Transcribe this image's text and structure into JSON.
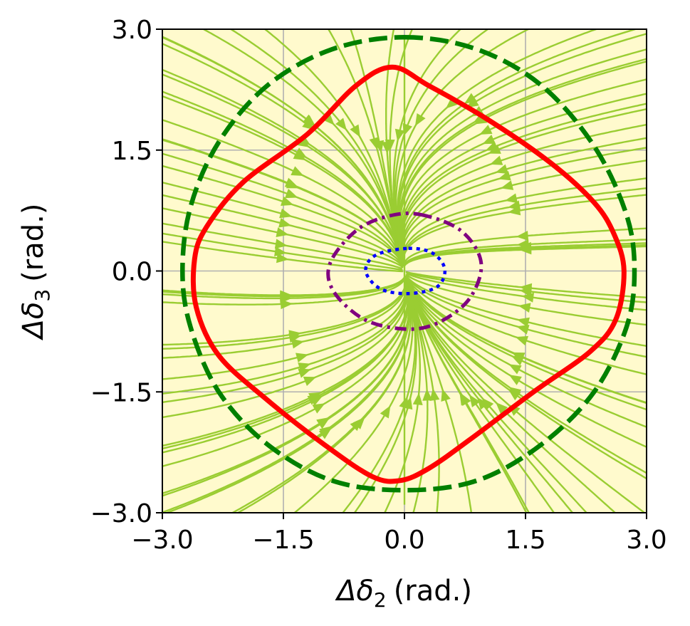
{
  "chart_data": {
    "type": "streamplot",
    "title": "",
    "xlabel": {
      "symbol": "Δδ",
      "sub": "2",
      "unit": "(rad.)"
    },
    "ylabel": {
      "symbol": "Δδ",
      "sub": "3",
      "unit": "(rad.)"
    },
    "xlim": [
      -3.0,
      3.0
    ],
    "ylim": [
      -3.0,
      3.0
    ],
    "xticks": [
      -3.0,
      -1.5,
      0.0,
      1.5,
      3.0
    ],
    "yticks": [
      -3.0,
      -1.5,
      0.0,
      1.5,
      3.0
    ],
    "xtick_labels": [
      "−3.0",
      "−1.5",
      "0.0",
      "1.5",
      "3.0"
    ],
    "ytick_labels": [
      "−3.0",
      "−1.5",
      "0.0",
      "1.5",
      "3.0"
    ],
    "grid": true,
    "background_color": "#fffacd",
    "streamline_color": "#9acd32",
    "equilibrium": [
      0.0,
      0.0
    ],
    "series": [
      {
        "style": "solid",
        "color": "#ff0000",
        "points": [
          [
            -0.15,
            2.53
          ],
          [
            0.3,
            2.3
          ],
          [
            1.0,
            1.9
          ],
          [
            1.8,
            1.35
          ],
          [
            2.35,
            0.85
          ],
          [
            2.6,
            0.45
          ],
          [
            2.72,
            0.0
          ],
          [
            2.62,
            -0.6
          ],
          [
            2.3,
            -1.0
          ],
          [
            1.6,
            -1.5
          ],
          [
            0.8,
            -2.1
          ],
          [
            0.3,
            -2.45
          ],
          [
            -0.05,
            -2.6
          ],
          [
            -0.4,
            -2.55
          ],
          [
            -1.0,
            -2.15
          ],
          [
            -1.7,
            -1.6
          ],
          [
            -2.3,
            -1.05
          ],
          [
            -2.58,
            -0.45
          ],
          [
            -2.6,
            0.15
          ],
          [
            -2.45,
            0.55
          ],
          [
            -2.0,
            1.1
          ],
          [
            -1.2,
            1.7
          ],
          [
            -0.6,
            2.3
          ]
        ]
      },
      {
        "style": "dashed",
        "color": "#008000",
        "points": [
          [
            0.0,
            2.9
          ],
          [
            0.9,
            2.75
          ],
          [
            1.7,
            2.3
          ],
          [
            2.35,
            1.55
          ],
          [
            2.75,
            0.7
          ],
          [
            2.85,
            0.0
          ],
          [
            2.75,
            -0.7
          ],
          [
            2.35,
            -1.5
          ],
          [
            1.7,
            -2.15
          ],
          [
            0.9,
            -2.6
          ],
          [
            0.0,
            -2.72
          ],
          [
            -0.9,
            -2.6
          ],
          [
            -1.7,
            -2.15
          ],
          [
            -2.3,
            -1.5
          ],
          [
            -2.65,
            -0.7
          ],
          [
            -2.75,
            0.0
          ],
          [
            -2.65,
            0.8
          ],
          [
            -2.3,
            1.6
          ],
          [
            -1.7,
            2.3
          ],
          [
            -0.9,
            2.75
          ]
        ]
      },
      {
        "style": "dashdot",
        "color": "#800080",
        "points": [
          [
            0.2,
            0.7
          ],
          [
            0.7,
            0.5
          ],
          [
            0.95,
            0.1
          ],
          [
            0.8,
            -0.35
          ],
          [
            0.4,
            -0.65
          ],
          [
            0.0,
            -0.72
          ],
          [
            -0.5,
            -0.6
          ],
          [
            -0.88,
            -0.25
          ],
          [
            -0.92,
            0.1
          ],
          [
            -0.6,
            0.5
          ],
          [
            -0.2,
            0.68
          ]
        ]
      },
      {
        "style": "dotted",
        "color": "#0000ff",
        "points": [
          [
            0.05,
            0.28
          ],
          [
            0.35,
            0.22
          ],
          [
            0.5,
            0.02
          ],
          [
            0.4,
            -0.2
          ],
          [
            0.05,
            -0.28
          ],
          [
            -0.3,
            -0.22
          ],
          [
            -0.48,
            0.0
          ],
          [
            -0.35,
            0.2
          ]
        ]
      }
    ]
  }
}
